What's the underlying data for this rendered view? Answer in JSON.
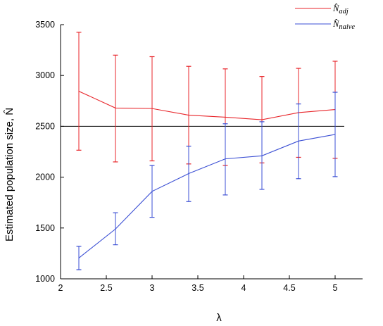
{
  "chart_data": {
    "type": "line",
    "x": [
      2.2,
      2.6,
      3.0,
      3.4,
      3.8,
      4.2,
      4.6,
      5.0
    ],
    "xlabel": "λ",
    "ylabel": "Estimated population size, N̂",
    "xlim": [
      2,
      5.3
    ],
    "ylim": [
      1000,
      3500
    ],
    "xticks": [
      "2",
      "2.5",
      "3",
      "3.5",
      "4",
      "4.5",
      "5"
    ],
    "yticks": [
      "1000",
      "1500",
      "2000",
      "2500",
      "3000",
      "3500"
    ],
    "reference_line": 2500,
    "legend_position": "top-right",
    "grid": false,
    "series": [
      {
        "name": "N̂adj",
        "legend_base": "N̂",
        "legend_sub": "adj",
        "color": "#e8262b",
        "values": [
          2845,
          2680,
          2675,
          2610,
          2590,
          2565,
          2635,
          2665
        ],
        "lower": [
          2265,
          2150,
          2160,
          2130,
          2115,
          2140,
          2195,
          2185
        ],
        "upper": [
          3425,
          3200,
          3185,
          3090,
          3065,
          2990,
          3070,
          3140
        ]
      },
      {
        "name": "N̂naive",
        "legend_base": "N̂",
        "legend_sub": "naive",
        "color": "#3b4fd4",
        "values": [
          1205,
          1490,
          1860,
          2035,
          2180,
          2210,
          2355,
          2420
        ],
        "lower": [
          1090,
          1335,
          1605,
          1760,
          1825,
          1880,
          1985,
          2005
        ],
        "upper": [
          1320,
          1650,
          2115,
          2305,
          2525,
          2545,
          2720,
          2835
        ]
      }
    ]
  }
}
